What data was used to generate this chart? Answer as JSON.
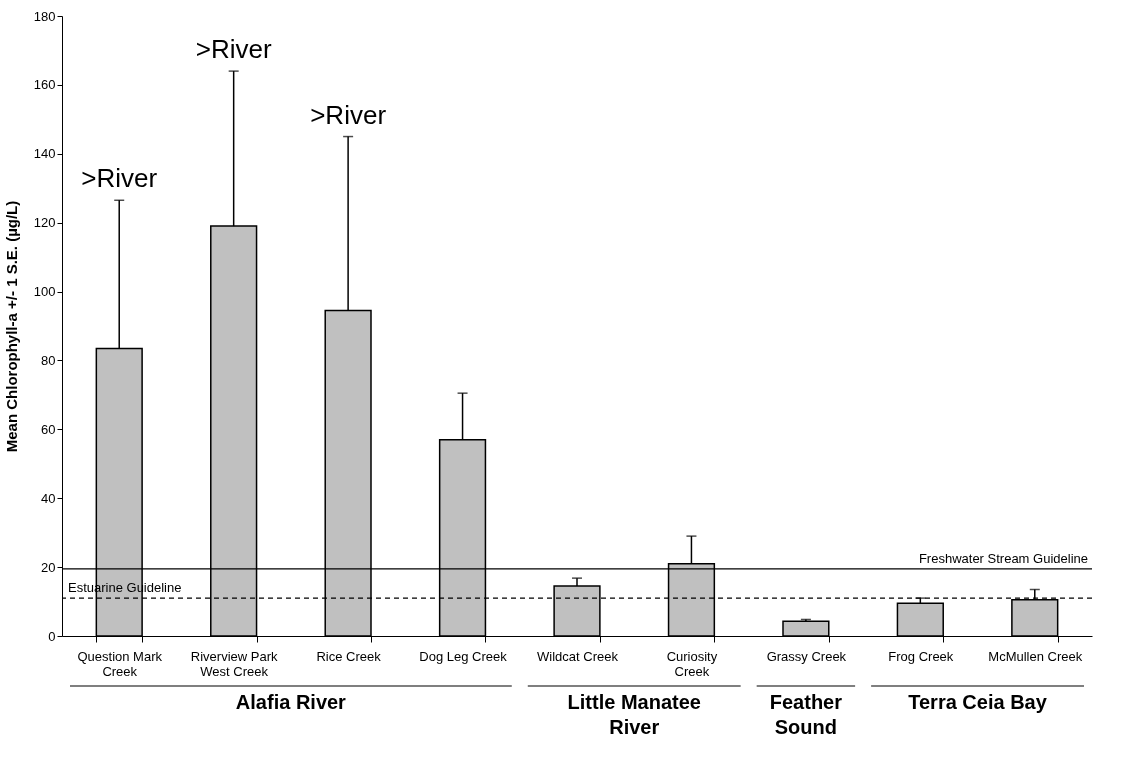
{
  "chart_data": {
    "type": "bar",
    "ylabel": "Mean Chlorophyll-a +/- 1 S.E. (µg/L)",
    "categories": [
      "Question Mark Creek",
      "Riverview Park West Creek",
      "Rice Creek",
      "Dog Leg Creek",
      "Wildcat Creek",
      "Curiosity Creek",
      "Grassy Creek",
      "Frog Creek",
      "McMullen Creek"
    ],
    "values": [
      83.5,
      119,
      94.5,
      57,
      14.5,
      21,
      4.3,
      9.5,
      10.5
    ],
    "errors": [
      [
        83.5,
        126.5
      ],
      [
        119,
        164
      ],
      [
        94.5,
        145
      ],
      [
        57,
        70.5
      ],
      [
        14.5,
        16.8
      ],
      [
        21,
        29
      ],
      [
        4.3,
        4.8
      ],
      [
        9.5,
        11
      ],
      [
        10.5,
        13.5
      ]
    ],
    "color": "#c0c0c0",
    "ylim": [
      0,
      180
    ],
    "yticks": [
      0,
      20,
      40,
      60,
      80,
      100,
      120,
      140,
      160,
      180
    ],
    "grid": false,
    "ref_lines": [
      {
        "axis": "y",
        "value": 19.5,
        "label": "Freshwater Stream Guideline",
        "line_style": "solid"
      },
      {
        "axis": "y",
        "value": 11,
        "label": "Estuarine Guideline",
        "line_style": "dashed"
      }
    ],
    "annotations": [
      {
        "text": ">River",
        "x": "Question Mark Creek",
        "y": 126.5
      },
      {
        "text": ">River",
        "x": "Riverview Park West Creek",
        "y": 164
      },
      {
        "text": ">River",
        "x": "Rice Creek",
        "y": 145
      },
      "Alafia River",
      "Little Manatee River",
      "Feather Sound",
      "Terra Ceia Bay"
    ]
  }
}
